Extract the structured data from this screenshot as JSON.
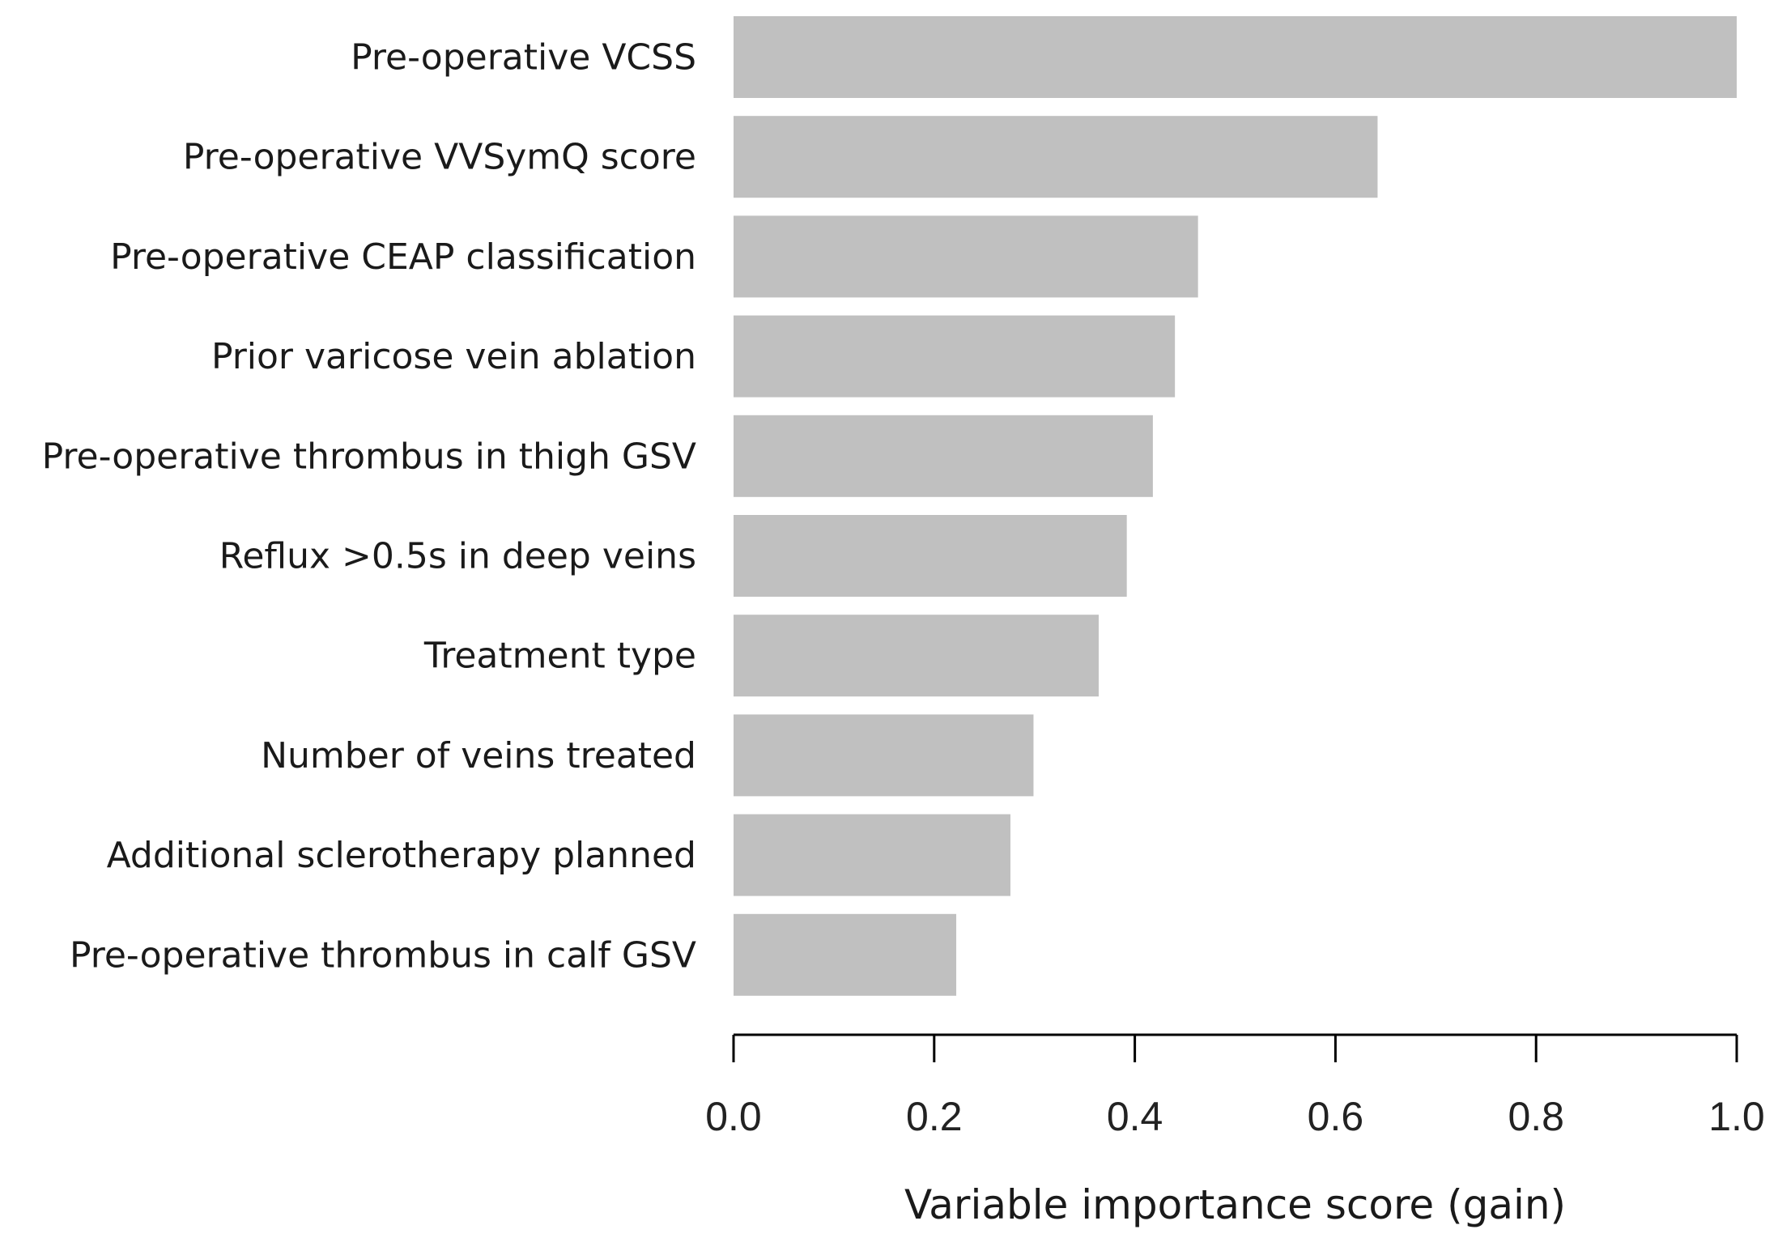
{
  "chart_data": {
    "type": "bar",
    "orientation": "horizontal",
    "categories": [
      "Pre-operative VCSS",
      "Pre-operative VVSymQ score",
      "Pre-operative CEAP classification",
      "Prior varicose vein ablation",
      "Pre-operative thrombus in thigh GSV",
      "Reflux >0.5s in deep veins",
      "Treatment type",
      "Number of veins treated",
      "Additional sclerotherapy planned",
      "Pre-operative thrombus in calf GSV"
    ],
    "values": [
      1.0,
      0.642,
      0.463,
      0.44,
      0.418,
      0.392,
      0.364,
      0.299,
      0.276,
      0.222
    ],
    "xlabel": "Variable importance score (gain)",
    "ylabel": "",
    "title": "",
    "xlim": [
      0,
      1.0
    ],
    "xticks": [
      "0.0",
      "0.2",
      "0.4",
      "0.6",
      "0.8",
      "1.0"
    ],
    "bar_color": "#c0c0c0",
    "axis_color": "#000000",
    "grid": false,
    "legend": "none"
  }
}
